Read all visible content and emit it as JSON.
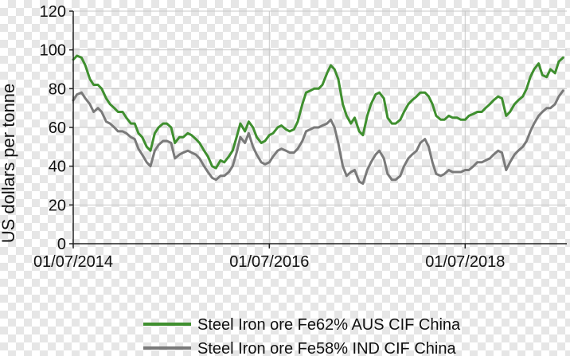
{
  "chart_data": {
    "type": "line",
    "title": "",
    "xlabel": "",
    "ylabel": "US dollars per tonne",
    "ylim": [
      0,
      120
    ],
    "yticks": [
      0,
      20,
      40,
      60,
      80,
      100,
      120
    ],
    "xlim": [
      "2014-07-01",
      "2019-07-15"
    ],
    "xticks": [
      {
        "date": "2014-07-01",
        "label": "01/07/2014"
      },
      {
        "date": "2016-07-01",
        "label": "01/07/2016"
      },
      {
        "date": "2018-07-01",
        "label": "01/07/2018"
      }
    ],
    "grid": true,
    "legend_position": "bottom",
    "series": [
      {
        "name": "Steel Iron ore Fe62% AUS CIF China",
        "color": "#3f8f2f",
        "points": [
          [
            "2014-07-01",
            95
          ],
          [
            "2014-07-15",
            97
          ],
          [
            "2014-08-01",
            96
          ],
          [
            "2014-08-15",
            92
          ],
          [
            "2014-09-01",
            85
          ],
          [
            "2014-09-15",
            82
          ],
          [
            "2014-10-01",
            82
          ],
          [
            "2014-10-15",
            80
          ],
          [
            "2014-11-01",
            75
          ],
          [
            "2014-11-15",
            72
          ],
          [
            "2014-12-01",
            70
          ],
          [
            "2014-12-15",
            68
          ],
          [
            "2015-01-01",
            68
          ],
          [
            "2015-01-15",
            65
          ],
          [
            "2015-02-01",
            62
          ],
          [
            "2015-02-15",
            62
          ],
          [
            "2015-03-01",
            57
          ],
          [
            "2015-03-15",
            55
          ],
          [
            "2015-04-01",
            50
          ],
          [
            "2015-04-15",
            48
          ],
          [
            "2015-05-01",
            57
          ],
          [
            "2015-05-15",
            60
          ],
          [
            "2015-06-01",
            62
          ],
          [
            "2015-06-15",
            62
          ],
          [
            "2015-07-01",
            60
          ],
          [
            "2015-07-15",
            52
          ],
          [
            "2015-08-01",
            55
          ],
          [
            "2015-08-15",
            55
          ],
          [
            "2015-09-01",
            57
          ],
          [
            "2015-09-15",
            56
          ],
          [
            "2015-10-01",
            54
          ],
          [
            "2015-10-15",
            52
          ],
          [
            "2015-11-01",
            48
          ],
          [
            "2015-11-15",
            45
          ],
          [
            "2015-12-01",
            40
          ],
          [
            "2015-12-15",
            39
          ],
          [
            "2016-01-01",
            43
          ],
          [
            "2016-01-15",
            42
          ],
          [
            "2016-02-01",
            45
          ],
          [
            "2016-02-15",
            48
          ],
          [
            "2016-03-01",
            55
          ],
          [
            "2016-03-15",
            62
          ],
          [
            "2016-04-01",
            58
          ],
          [
            "2016-04-15",
            63
          ],
          [
            "2016-05-01",
            60
          ],
          [
            "2016-05-15",
            55
          ],
          [
            "2016-06-01",
            52
          ],
          [
            "2016-06-15",
            53
          ],
          [
            "2016-07-01",
            56
          ],
          [
            "2016-07-15",
            57
          ],
          [
            "2016-08-01",
            60
          ],
          [
            "2016-08-15",
            61
          ],
          [
            "2016-09-01",
            59
          ],
          [
            "2016-09-15",
            58
          ],
          [
            "2016-10-01",
            59
          ],
          [
            "2016-10-15",
            63
          ],
          [
            "2016-11-01",
            72
          ],
          [
            "2016-11-15",
            78
          ],
          [
            "2016-12-01",
            79
          ],
          [
            "2016-12-15",
            80
          ],
          [
            "2017-01-01",
            80
          ],
          [
            "2017-01-15",
            82
          ],
          [
            "2017-02-01",
            88
          ],
          [
            "2017-02-15",
            92
          ],
          [
            "2017-03-01",
            90
          ],
          [
            "2017-03-15",
            85
          ],
          [
            "2017-04-01",
            72
          ],
          [
            "2017-04-15",
            66
          ],
          [
            "2017-05-01",
            62
          ],
          [
            "2017-05-15",
            65
          ],
          [
            "2017-06-01",
            58
          ],
          [
            "2017-06-15",
            56
          ],
          [
            "2017-07-01",
            66
          ],
          [
            "2017-07-15",
            72
          ],
          [
            "2017-08-01",
            77
          ],
          [
            "2017-08-15",
            78
          ],
          [
            "2017-09-01",
            75
          ],
          [
            "2017-09-15",
            65
          ],
          [
            "2017-10-01",
            62
          ],
          [
            "2017-10-15",
            62
          ],
          [
            "2017-11-01",
            64
          ],
          [
            "2017-11-15",
            68
          ],
          [
            "2017-12-01",
            72
          ],
          [
            "2017-12-15",
            74
          ],
          [
            "2018-01-01",
            76
          ],
          [
            "2018-01-15",
            78
          ],
          [
            "2018-02-01",
            78
          ],
          [
            "2018-02-15",
            76
          ],
          [
            "2018-03-01",
            72
          ],
          [
            "2018-03-15",
            66
          ],
          [
            "2018-04-01",
            64
          ],
          [
            "2018-04-15",
            64
          ],
          [
            "2018-05-01",
            66
          ],
          [
            "2018-05-15",
            65
          ],
          [
            "2018-06-01",
            65
          ],
          [
            "2018-06-15",
            64
          ],
          [
            "2018-07-01",
            64
          ],
          [
            "2018-07-15",
            66
          ],
          [
            "2018-08-01",
            67
          ],
          [
            "2018-08-15",
            68
          ],
          [
            "2018-09-01",
            68
          ],
          [
            "2018-09-15",
            70
          ],
          [
            "2018-10-01",
            72
          ],
          [
            "2018-10-15",
            74
          ],
          [
            "2018-11-01",
            76
          ],
          [
            "2018-11-15",
            75
          ],
          [
            "2018-12-01",
            66
          ],
          [
            "2018-12-15",
            68
          ],
          [
            "2019-01-01",
            72
          ],
          [
            "2019-01-15",
            74
          ],
          [
            "2019-02-01",
            76
          ],
          [
            "2019-02-15",
            80
          ],
          [
            "2019-03-01",
            86
          ],
          [
            "2019-03-15",
            90
          ],
          [
            "2019-04-01",
            93
          ],
          [
            "2019-04-15",
            87
          ],
          [
            "2019-05-01",
            86
          ],
          [
            "2019-05-15",
            90
          ],
          [
            "2019-06-01",
            88
          ],
          [
            "2019-06-15",
            94
          ],
          [
            "2019-07-01",
            96
          ]
        ]
      },
      {
        "name": "Steel Iron ore Fe58% IND CIF China",
        "color": "#7a7a7a",
        "points": [
          [
            "2014-07-01",
            74
          ],
          [
            "2014-07-15",
            77
          ],
          [
            "2014-08-01",
            78
          ],
          [
            "2014-08-15",
            75
          ],
          [
            "2014-09-01",
            72
          ],
          [
            "2014-09-15",
            68
          ],
          [
            "2014-10-01",
            70
          ],
          [
            "2014-10-15",
            68
          ],
          [
            "2014-11-01",
            63
          ],
          [
            "2014-11-15",
            62
          ],
          [
            "2014-12-01",
            60
          ],
          [
            "2014-12-15",
            58
          ],
          [
            "2015-01-01",
            58
          ],
          [
            "2015-01-15",
            57
          ],
          [
            "2015-02-01",
            55
          ],
          [
            "2015-02-15",
            54
          ],
          [
            "2015-03-01",
            49
          ],
          [
            "2015-03-15",
            46
          ],
          [
            "2015-04-01",
            42
          ],
          [
            "2015-04-15",
            40
          ],
          [
            "2015-05-01",
            48
          ],
          [
            "2015-05-15",
            51
          ],
          [
            "2015-06-01",
            53
          ],
          [
            "2015-06-15",
            53
          ],
          [
            "2015-07-01",
            52
          ],
          [
            "2015-07-15",
            44
          ],
          [
            "2015-08-01",
            46
          ],
          [
            "2015-08-15",
            47
          ],
          [
            "2015-09-01",
            48
          ],
          [
            "2015-09-15",
            47
          ],
          [
            "2015-10-01",
            46
          ],
          [
            "2015-10-15",
            44
          ],
          [
            "2015-11-01",
            40
          ],
          [
            "2015-11-15",
            37
          ],
          [
            "2015-12-01",
            34
          ],
          [
            "2015-12-15",
            33
          ],
          [
            "2016-01-01",
            35
          ],
          [
            "2016-01-15",
            35
          ],
          [
            "2016-02-01",
            37
          ],
          [
            "2016-02-15",
            40
          ],
          [
            "2016-03-01",
            47
          ],
          [
            "2016-03-15",
            55
          ],
          [
            "2016-04-01",
            52
          ],
          [
            "2016-04-15",
            57
          ],
          [
            "2016-05-01",
            50
          ],
          [
            "2016-05-15",
            46
          ],
          [
            "2016-06-01",
            42
          ],
          [
            "2016-06-15",
            41
          ],
          [
            "2016-07-01",
            42
          ],
          [
            "2016-07-15",
            45
          ],
          [
            "2016-08-01",
            48
          ],
          [
            "2016-08-15",
            49
          ],
          [
            "2016-09-01",
            48
          ],
          [
            "2016-09-15",
            47
          ],
          [
            "2016-10-01",
            47
          ],
          [
            "2016-10-15",
            49
          ],
          [
            "2016-11-01",
            53
          ],
          [
            "2016-11-15",
            58
          ],
          [
            "2016-12-01",
            59
          ],
          [
            "2016-12-15",
            60
          ],
          [
            "2017-01-01",
            60
          ],
          [
            "2017-01-15",
            61
          ],
          [
            "2017-02-01",
            62
          ],
          [
            "2017-02-15",
            64
          ],
          [
            "2017-03-01",
            60
          ],
          [
            "2017-03-15",
            52
          ],
          [
            "2017-04-01",
            40
          ],
          [
            "2017-04-15",
            35
          ],
          [
            "2017-05-01",
            37
          ],
          [
            "2017-05-15",
            38
          ],
          [
            "2017-06-01",
            32
          ],
          [
            "2017-06-15",
            31
          ],
          [
            "2017-07-01",
            38
          ],
          [
            "2017-07-15",
            42
          ],
          [
            "2017-08-01",
            46
          ],
          [
            "2017-08-15",
            48
          ],
          [
            "2017-09-01",
            44
          ],
          [
            "2017-09-15",
            36
          ],
          [
            "2017-10-01",
            33
          ],
          [
            "2017-10-15",
            33
          ],
          [
            "2017-11-01",
            35
          ],
          [
            "2017-11-15",
            40
          ],
          [
            "2017-12-01",
            44
          ],
          [
            "2017-12-15",
            46
          ],
          [
            "2018-01-01",
            48
          ],
          [
            "2018-01-15",
            52
          ],
          [
            "2018-02-01",
            54
          ],
          [
            "2018-02-15",
            50
          ],
          [
            "2018-03-01",
            42
          ],
          [
            "2018-03-15",
            36
          ],
          [
            "2018-04-01",
            35
          ],
          [
            "2018-04-15",
            36
          ],
          [
            "2018-05-01",
            38
          ],
          [
            "2018-05-15",
            37
          ],
          [
            "2018-06-01",
            37
          ],
          [
            "2018-06-15",
            37
          ],
          [
            "2018-07-01",
            38
          ],
          [
            "2018-07-15",
            38
          ],
          [
            "2018-08-01",
            40
          ],
          [
            "2018-08-15",
            42
          ],
          [
            "2018-09-01",
            42
          ],
          [
            "2018-09-15",
            43
          ],
          [
            "2018-10-01",
            44
          ],
          [
            "2018-10-15",
            46
          ],
          [
            "2018-11-01",
            48
          ],
          [
            "2018-11-15",
            47
          ],
          [
            "2018-12-01",
            38
          ],
          [
            "2018-12-15",
            42
          ],
          [
            "2019-01-01",
            46
          ],
          [
            "2019-01-15",
            48
          ],
          [
            "2019-02-01",
            50
          ],
          [
            "2019-02-15",
            53
          ],
          [
            "2019-03-01",
            58
          ],
          [
            "2019-03-15",
            62
          ],
          [
            "2019-04-01",
            66
          ],
          [
            "2019-04-15",
            68
          ],
          [
            "2019-05-01",
            70
          ],
          [
            "2019-05-15",
            70
          ],
          [
            "2019-06-01",
            72
          ],
          [
            "2019-06-15",
            76
          ],
          [
            "2019-07-01",
            79
          ]
        ]
      }
    ]
  }
}
